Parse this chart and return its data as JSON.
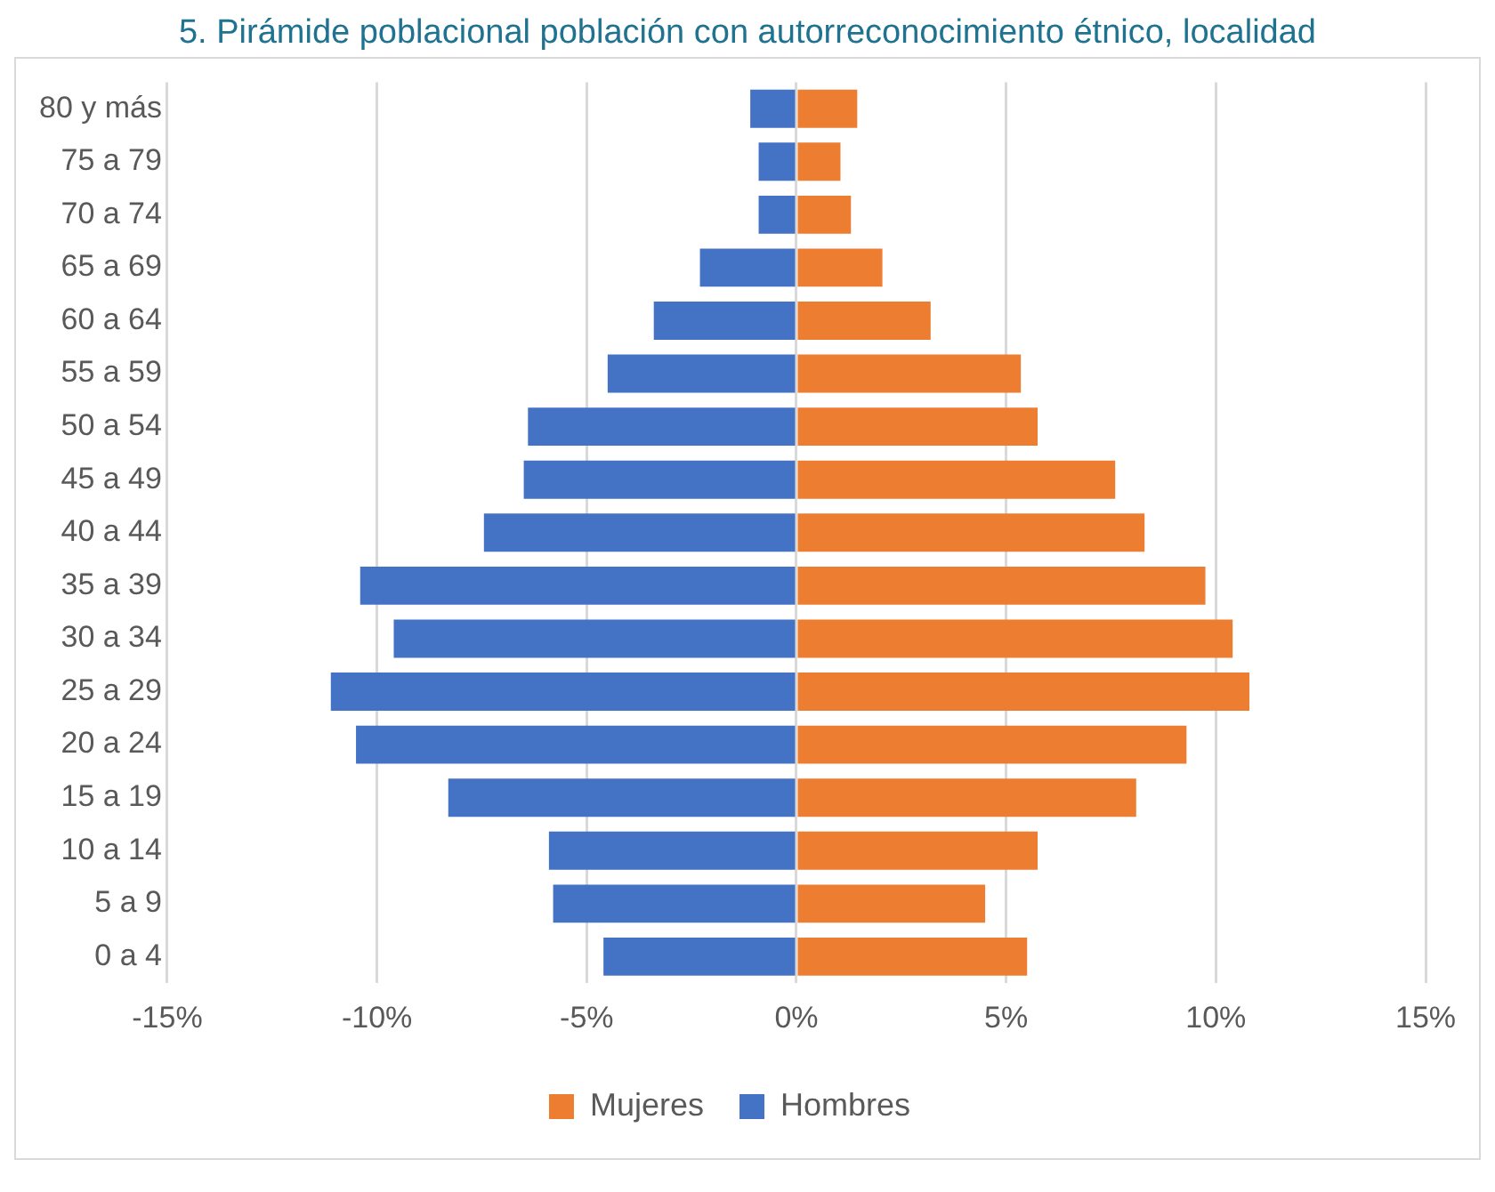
{
  "chart_data": {
    "type": "bar",
    "orientation": "horizontal",
    "stacked": true,
    "title": "5. Pirámide poblacional población con autorreconocimiento étnico, localidad",
    "categories": [
      "80 y más",
      "75 a 79",
      "70 a 74",
      "65 a 69",
      "60 a 64",
      "55 a 59",
      "50 a 54",
      "45 a 49",
      "40 a 44",
      "35 a 39",
      "30 a 34",
      "25 a 29",
      "20 a 24",
      "15 a 19",
      "10 a 14",
      "5 a 9",
      "0 a 4"
    ],
    "series": [
      {
        "name": "Mujeres",
        "color": "#ed7d31",
        "values": [
          1.45,
          1.05,
          1.3,
          2.05,
          3.2,
          5.35,
          5.75,
          7.6,
          8.3,
          9.75,
          10.4,
          10.8,
          9.3,
          8.1,
          5.75,
          4.5,
          5.5
        ]
      },
      {
        "name": "Hombres",
        "color": "#4472c4",
        "values": [
          -1.1,
          -0.9,
          -0.9,
          -2.3,
          -3.4,
          -4.5,
          -6.4,
          -6.5,
          -7.45,
          -10.4,
          -9.6,
          -11.1,
          -10.5,
          -8.3,
          -5.9,
          -5.8,
          -4.6
        ]
      }
    ],
    "xlim": [
      -15,
      15
    ],
    "xticks": [
      {
        "value": -15,
        "label": "-15%"
      },
      {
        "value": -10,
        "label": "-10%"
      },
      {
        "value": -5,
        "label": "-5%"
      },
      {
        "value": 0,
        "label": "0%"
      },
      {
        "value": 5,
        "label": "5%"
      },
      {
        "value": 10,
        "label": "10%"
      },
      {
        "value": 15,
        "label": "15%"
      }
    ],
    "grid": "x",
    "legend": "bottom"
  }
}
